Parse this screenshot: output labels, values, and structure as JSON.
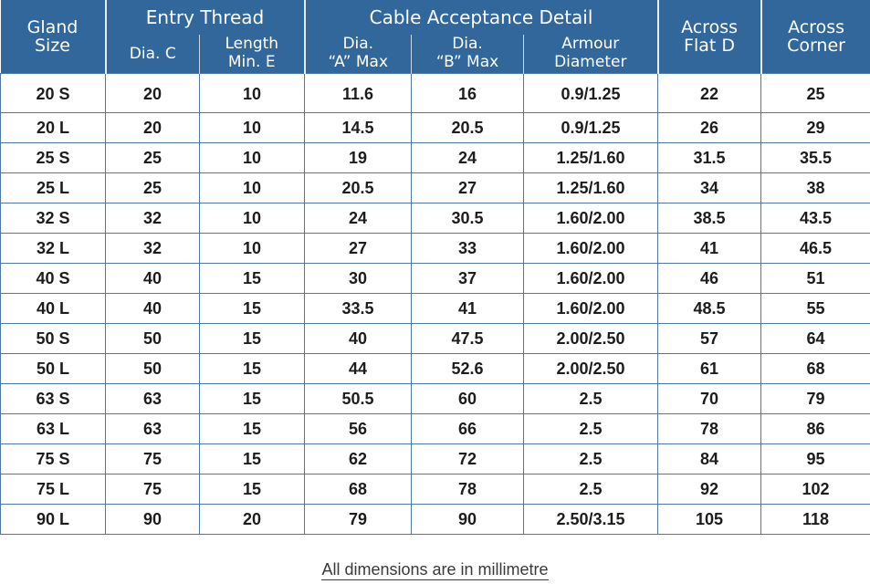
{
  "header": {
    "gland_size": [
      "Gland",
      "Size"
    ],
    "entry_thread": "Entry Thread",
    "dia_c": "Dia. C",
    "length_min_e": [
      "Length",
      "Min. E"
    ],
    "cable_acceptance": "Cable Acceptance Detail",
    "dia_a": [
      "Dia.",
      "“A” Max"
    ],
    "dia_b": [
      "Dia.",
      "“B” Max"
    ],
    "armour": [
      "Armour",
      "Diameter"
    ],
    "across_flat": [
      "Across",
      "Flat D"
    ],
    "across_corner": [
      "Across",
      "Corner"
    ]
  },
  "rows": [
    [
      "20 S",
      "20",
      "10",
      "11.6",
      "16",
      "0.9/1.25",
      "22",
      "25"
    ],
    [
      "20 L",
      "20",
      "10",
      "14.5",
      "20.5",
      "0.9/1.25",
      "26",
      "29"
    ],
    [
      "25 S",
      "25",
      "10",
      "19",
      "24",
      "1.25/1.60",
      "31.5",
      "35.5"
    ],
    [
      "25 L",
      "25",
      "10",
      "20.5",
      "27",
      "1.25/1.60",
      "34",
      "38"
    ],
    [
      "32 S",
      "32",
      "10",
      "24",
      "30.5",
      "1.60/2.00",
      "38.5",
      "43.5"
    ],
    [
      "32 L",
      "32",
      "10",
      "27",
      "33",
      "1.60/2.00",
      "41",
      "46.5"
    ],
    [
      "40 S",
      "40",
      "15",
      "30",
      "37",
      "1.60/2.00",
      "46",
      "51"
    ],
    [
      "40 L",
      "40",
      "15",
      "33.5",
      "41",
      "1.60/2.00",
      "48.5",
      "55"
    ],
    [
      "50 S",
      "50",
      "15",
      "40",
      "47.5",
      "2.00/2.50",
      "57",
      "64"
    ],
    [
      "50 L",
      "50",
      "15",
      "44",
      "52.6",
      "2.00/2.50",
      "61",
      "68"
    ],
    [
      "63 S",
      "63",
      "15",
      "50.5",
      "60",
      "2.5",
      "70",
      "79"
    ],
    [
      "63 L",
      "63",
      "15",
      "56",
      "66",
      "2.5",
      "78",
      "86"
    ],
    [
      "75 S",
      "75",
      "15",
      "62",
      "72",
      "2.5",
      "84",
      "95"
    ],
    [
      "75 L",
      "75",
      "15",
      "68",
      "78",
      "2.5",
      "92",
      "102"
    ],
    [
      "90 L",
      "90",
      "20",
      "79",
      "90",
      "2.50/3.15",
      "105",
      "118"
    ]
  ],
  "caption": "All dimensions are in millimetre",
  "colors": {
    "header_bg": "#31679a",
    "grid": "#4f77a3"
  }
}
